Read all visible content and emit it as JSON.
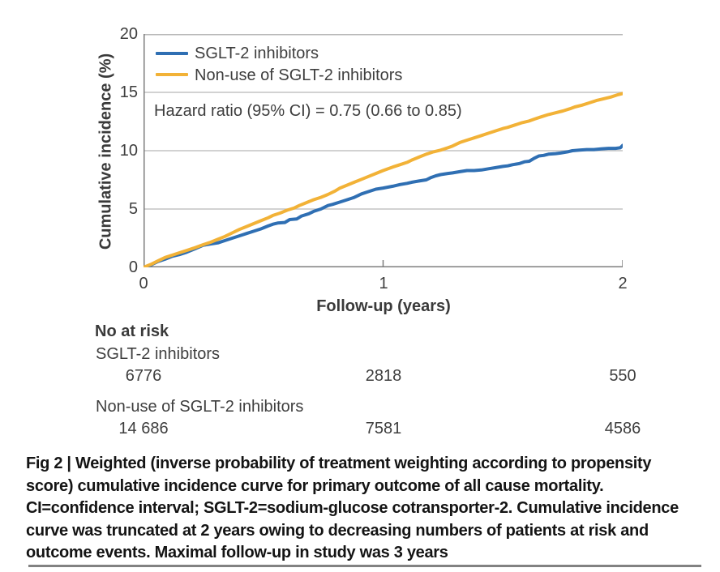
{
  "figure": {
    "caption_lines": [
      "Fig 2 | Weighted (inverse probability of treatment weighting according to propensity",
      "score) cumulative incidence curve for primary outcome of all cause mortality.",
      "CI=confidence interval; SGLT-2=sodium-glucose cotransporter-2. Cumulative incidence",
      "curve was truncated at 2 years owing to decreasing numbers of patients at risk and",
      "outcome events. Maximal follow-up in study was 3 years"
    ]
  },
  "chart_data": {
    "type": "line",
    "title": "",
    "xlabel": "Follow-up (years)",
    "ylabel": "Cumulative incidence (%)",
    "xlim": [
      0,
      2
    ],
    "ylim": [
      0,
      20
    ],
    "xticks": [
      "0",
      "1",
      "2"
    ],
    "yticks": [
      "0",
      "5",
      "10",
      "15",
      "20"
    ],
    "grid": true,
    "legend_position": "inside top-left",
    "annotation": "Hazard ratio (95% CI) = 0.75 (0.66 to 0.85)",
    "colors": {
      "grid": "#c3c3c3",
      "axis": "#7d7d7d",
      "top_border": "#b9b9b9"
    },
    "series": [
      {
        "name": "SGLT-2 inhibitors",
        "color": "#2f6fb3",
        "points": [
          [
            0,
            0
          ],
          [
            0.03,
            0.2
          ],
          [
            0.06,
            0.5
          ],
          [
            0.09,
            0.7
          ],
          [
            0.12,
            0.95
          ],
          [
            0.15,
            1.1
          ],
          [
            0.18,
            1.3
          ],
          [
            0.21,
            1.55
          ],
          [
            0.25,
            1.9
          ],
          [
            0.28,
            2.0
          ],
          [
            0.31,
            2.1
          ],
          [
            0.34,
            2.3
          ],
          [
            0.37,
            2.5
          ],
          [
            0.4,
            2.7
          ],
          [
            0.43,
            2.9
          ],
          [
            0.46,
            3.1
          ],
          [
            0.49,
            3.3
          ],
          [
            0.52,
            3.55
          ],
          [
            0.54,
            3.7
          ],
          [
            0.56,
            3.8
          ],
          [
            0.59,
            3.85
          ],
          [
            0.61,
            4.1
          ],
          [
            0.64,
            4.15
          ],
          [
            0.66,
            4.4
          ],
          [
            0.69,
            4.6
          ],
          [
            0.71,
            4.8
          ],
          [
            0.74,
            5.0
          ],
          [
            0.77,
            5.3
          ],
          [
            0.79,
            5.4
          ],
          [
            0.82,
            5.6
          ],
          [
            0.85,
            5.8
          ],
          [
            0.88,
            6.0
          ],
          [
            0.91,
            6.3
          ],
          [
            0.94,
            6.5
          ],
          [
            0.97,
            6.7
          ],
          [
            1.0,
            6.8
          ],
          [
            1.04,
            6.95
          ],
          [
            1.07,
            7.1
          ],
          [
            1.1,
            7.2
          ],
          [
            1.12,
            7.3
          ],
          [
            1.15,
            7.4
          ],
          [
            1.18,
            7.5
          ],
          [
            1.2,
            7.7
          ],
          [
            1.22,
            7.85
          ],
          [
            1.24,
            7.95
          ],
          [
            1.27,
            8.05
          ],
          [
            1.29,
            8.1
          ],
          [
            1.32,
            8.2
          ],
          [
            1.35,
            8.3
          ],
          [
            1.38,
            8.3
          ],
          [
            1.41,
            8.35
          ],
          [
            1.44,
            8.45
          ],
          [
            1.47,
            8.55
          ],
          [
            1.5,
            8.65
          ],
          [
            1.52,
            8.7
          ],
          [
            1.54,
            8.8
          ],
          [
            1.57,
            8.9
          ],
          [
            1.59,
            9.05
          ],
          [
            1.61,
            9.1
          ],
          [
            1.63,
            9.35
          ],
          [
            1.65,
            9.55
          ],
          [
            1.67,
            9.6
          ],
          [
            1.69,
            9.7
          ],
          [
            1.72,
            9.75
          ],
          [
            1.74,
            9.8
          ],
          [
            1.77,
            9.9
          ],
          [
            1.79,
            10.0
          ],
          [
            1.82,
            10.05
          ],
          [
            1.85,
            10.1
          ],
          [
            1.88,
            10.1
          ],
          [
            1.91,
            10.15
          ],
          [
            1.94,
            10.2
          ],
          [
            1.97,
            10.2
          ],
          [
            1.99,
            10.25
          ],
          [
            2.0,
            10.45
          ]
        ]
      },
      {
        "name": "Non-use of SGLT-2 inhibitors",
        "color": "#f2b237",
        "points": [
          [
            0,
            0
          ],
          [
            0.03,
            0.25
          ],
          [
            0.06,
            0.55
          ],
          [
            0.09,
            0.85
          ],
          [
            0.12,
            1.05
          ],
          [
            0.15,
            1.25
          ],
          [
            0.18,
            1.45
          ],
          [
            0.21,
            1.65
          ],
          [
            0.25,
            1.95
          ],
          [
            0.28,
            2.15
          ],
          [
            0.31,
            2.4
          ],
          [
            0.34,
            2.65
          ],
          [
            0.37,
            2.95
          ],
          [
            0.4,
            3.25
          ],
          [
            0.43,
            3.5
          ],
          [
            0.46,
            3.75
          ],
          [
            0.49,
            4.0
          ],
          [
            0.52,
            4.25
          ],
          [
            0.54,
            4.45
          ],
          [
            0.57,
            4.65
          ],
          [
            0.6,
            4.9
          ],
          [
            0.63,
            5.1
          ],
          [
            0.65,
            5.3
          ],
          [
            0.68,
            5.55
          ],
          [
            0.71,
            5.8
          ],
          [
            0.74,
            6.0
          ],
          [
            0.77,
            6.25
          ],
          [
            0.8,
            6.55
          ],
          [
            0.82,
            6.8
          ],
          [
            0.85,
            7.05
          ],
          [
            0.88,
            7.3
          ],
          [
            0.91,
            7.55
          ],
          [
            0.94,
            7.8
          ],
          [
            0.97,
            8.05
          ],
          [
            1.0,
            8.3
          ],
          [
            1.04,
            8.6
          ],
          [
            1.07,
            8.8
          ],
          [
            1.1,
            9.0
          ],
          [
            1.12,
            9.2
          ],
          [
            1.15,
            9.45
          ],
          [
            1.18,
            9.7
          ],
          [
            1.21,
            9.9
          ],
          [
            1.24,
            10.05
          ],
          [
            1.27,
            10.25
          ],
          [
            1.29,
            10.4
          ],
          [
            1.32,
            10.7
          ],
          [
            1.35,
            10.9
          ],
          [
            1.38,
            11.1
          ],
          [
            1.41,
            11.3
          ],
          [
            1.44,
            11.5
          ],
          [
            1.47,
            11.7
          ],
          [
            1.5,
            11.9
          ],
          [
            1.52,
            12.0
          ],
          [
            1.55,
            12.2
          ],
          [
            1.58,
            12.4
          ],
          [
            1.61,
            12.55
          ],
          [
            1.63,
            12.7
          ],
          [
            1.66,
            12.9
          ],
          [
            1.69,
            13.1
          ],
          [
            1.72,
            13.25
          ],
          [
            1.75,
            13.4
          ],
          [
            1.78,
            13.6
          ],
          [
            1.8,
            13.75
          ],
          [
            1.83,
            13.9
          ],
          [
            1.86,
            14.1
          ],
          [
            1.89,
            14.3
          ],
          [
            1.92,
            14.45
          ],
          [
            1.95,
            14.6
          ],
          [
            1.98,
            14.8
          ],
          [
            2.0,
            14.9
          ]
        ]
      }
    ]
  },
  "risk_table": {
    "heading": "No at risk",
    "rows": [
      {
        "label": "SGLT-2 inhibitors",
        "values": [
          "6776",
          "2818",
          "550"
        ]
      },
      {
        "label": "Non-use of SGLT-2 inhibitors",
        "values": [
          "14 686",
          "7581",
          "4586"
        ]
      }
    ]
  }
}
